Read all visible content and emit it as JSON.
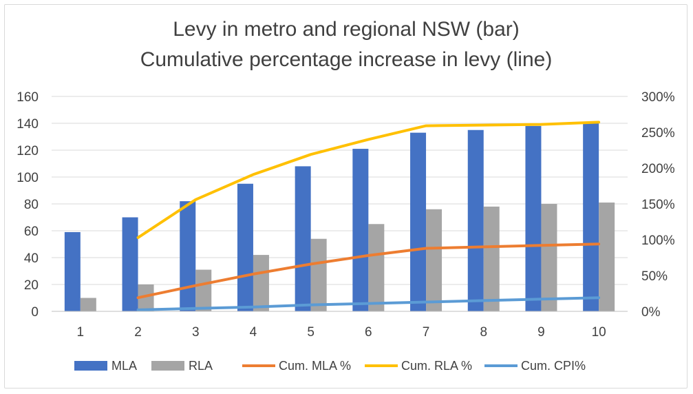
{
  "chart_data": {
    "type": "bar",
    "title": "Levy in metro and regional NSW (bar)",
    "subtitle": "Cumulative percentage increase in levy (line)",
    "categories": [
      "1",
      "2",
      "3",
      "4",
      "5",
      "6",
      "7",
      "8",
      "9",
      "10"
    ],
    "ylim": [
      0,
      160
    ],
    "yticks": [
      "0",
      "20",
      "40",
      "60",
      "80",
      "100",
      "120",
      "140",
      "160"
    ],
    "y2lim": [
      0,
      300
    ],
    "y2ticks": [
      "0%",
      "50%",
      "100%",
      "150%",
      "200%",
      "250%",
      "300%"
    ],
    "grid": true,
    "legend_position": "bottom",
    "bar_series": [
      {
        "name": "MLA",
        "color": "#4472c4",
        "values": [
          59,
          70,
          82,
          95,
          108,
          121,
          133,
          135,
          138,
          140
        ]
      },
      {
        "name": "RLA",
        "color": "#a5a5a5",
        "values": [
          10,
          20,
          31,
          42,
          54,
          65,
          76,
          78,
          80,
          81
        ]
      }
    ],
    "line_series": [
      {
        "name": "Cum. MLA %",
        "color": "#ed7d31",
        "axis": "right",
        "values": [
          null,
          19,
          36,
          52,
          66,
          78,
          88,
          90,
          92,
          94
        ]
      },
      {
        "name": "Cum. RLA %",
        "color": "#ffc000",
        "axis": "right",
        "values": [
          null,
          103,
          156,
          191,
          219,
          240,
          259,
          260,
          261,
          264
        ]
      },
      {
        "name": "Cum. CPI%",
        "color": "#5b9bd5",
        "axis": "right",
        "values": [
          null,
          2,
          4,
          6,
          9,
          11,
          13,
          15,
          17,
          19
        ]
      }
    ]
  }
}
